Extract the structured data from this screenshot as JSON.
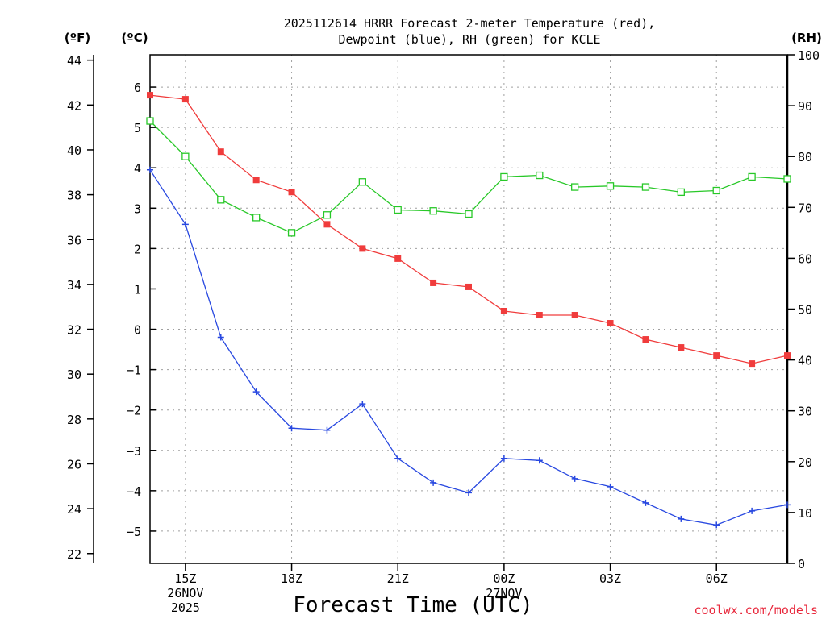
{
  "chart_data": {
    "type": "line",
    "title_line1": "2025112614 HRRR Forecast 2-meter Temperature (red),",
    "title_line2": "Dewpoint (blue), RH (green) for KCLE",
    "xlabel": "Forecast Time (UTC)",
    "credit": "coolwx.com/models",
    "unit_f": "(ºF)",
    "unit_c": "(ºC)",
    "unit_rh": "(RH)",
    "hours": [
      14,
      15,
      16,
      17,
      18,
      19,
      20,
      21,
      22,
      23,
      24,
      25,
      26,
      27,
      28,
      29,
      30,
      31,
      32
    ],
    "x_ticks": [
      {
        "hour": 15,
        "label": "15Z",
        "sub1": "26NOV",
        "sub2": "2025"
      },
      {
        "hour": 18,
        "label": "18Z",
        "sub1": "",
        "sub2": ""
      },
      {
        "hour": 21,
        "label": "21Z",
        "sub1": "",
        "sub2": ""
      },
      {
        "hour": 24,
        "label": "00Z",
        "sub1": "27NOV",
        "sub2": ""
      },
      {
        "hour": 27,
        "label": "03Z",
        "sub1": "",
        "sub2": ""
      },
      {
        "hour": 30,
        "label": "06Z",
        "sub1": "",
        "sub2": ""
      }
    ],
    "xlim": [
      14,
      32
    ],
    "c_lim": [
      -5.8,
      6.8
    ],
    "c_ticks": [
      "6",
      "5",
      "4",
      "3",
      "2",
      "1",
      "0",
      "−1",
      "−2",
      "−3",
      "−4",
      "−5"
    ],
    "c_tick_values": [
      6,
      5,
      4,
      3,
      2,
      1,
      0,
      -1,
      -2,
      -3,
      -4,
      -5
    ],
    "f_ticks": [
      "44",
      "42",
      "40",
      "38",
      "36",
      "34",
      "32",
      "30",
      "28",
      "26",
      "24",
      "22"
    ],
    "f_tick_values": [
      44,
      42,
      40,
      38,
      36,
      34,
      32,
      30,
      28,
      26,
      24,
      22
    ],
    "rh_lim": [
      0,
      100
    ],
    "rh_ticks": [
      "100",
      "90",
      "80",
      "70",
      "60",
      "50",
      "40",
      "30",
      "20",
      "10",
      "0"
    ],
    "rh_tick_values": [
      100,
      90,
      80,
      70,
      60,
      50,
      40,
      30,
      20,
      10,
      0
    ],
    "colors": {
      "temp": "#f03c3c",
      "dew": "#2848e0",
      "rh": "#28c828",
      "grid": "#a0a0a0",
      "credit": "#e8283c"
    },
    "series": [
      {
        "name": "Temperature",
        "units": "C",
        "color": "#f03c3c",
        "marker": "filled-square",
        "values": [
          5.8,
          5.7,
          4.4,
          3.7,
          3.4,
          2.6,
          2.0,
          1.75,
          1.15,
          1.05,
          0.45,
          0.35,
          0.35,
          0.15,
          -0.25,
          -0.45,
          -0.65,
          -0.85,
          -0.65
        ]
      },
      {
        "name": "Dewpoint",
        "units": "C",
        "color": "#2848e0",
        "marker": "plus",
        "values": [
          3.95,
          2.6,
          -0.2,
          -1.55,
          -2.45,
          -2.5,
          -1.85,
          -3.2,
          -3.8,
          -4.05,
          -3.2,
          -3.25,
          -3.7,
          -3.9,
          -4.3,
          -4.7,
          -4.85,
          -4.5,
          -4.35
        ]
      },
      {
        "name": "RH",
        "units": "%",
        "color": "#28c828",
        "marker": "open-square",
        "values": [
          87,
          80,
          71.5,
          68,
          65,
          68.5,
          75,
          69.5,
          69.3,
          68.7,
          76,
          76.3,
          74,
          74.2,
          74,
          73,
          73.3,
          76,
          75.6
        ]
      }
    ]
  }
}
